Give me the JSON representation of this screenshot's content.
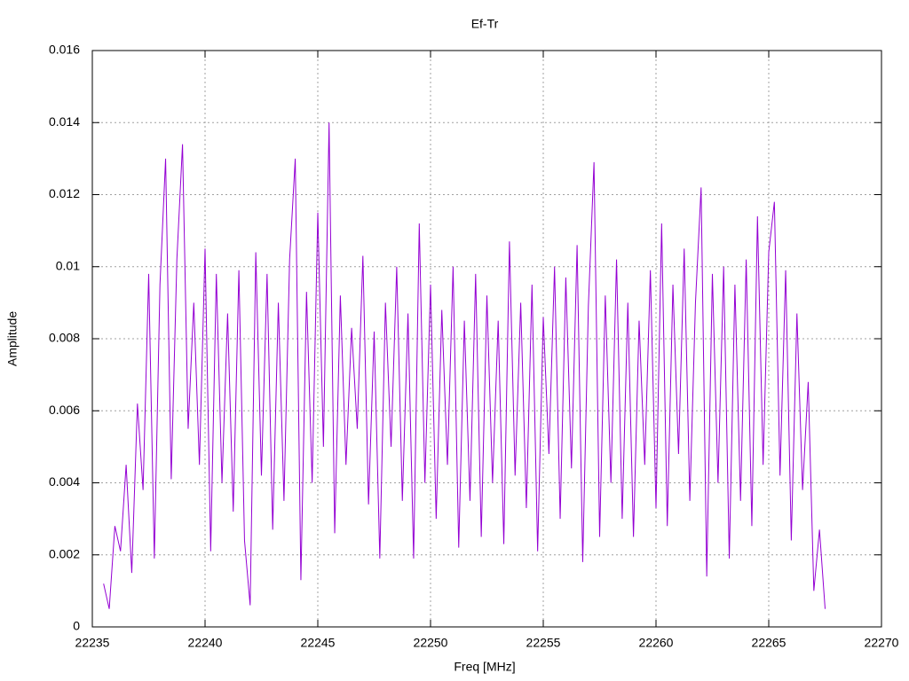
{
  "chart_data": {
    "type": "line",
    "title": "Ef-Tr",
    "x_label": "Freq [MHz]",
    "y_label": "Amplitude",
    "x": [
      22235.5,
      22235.75,
      22236,
      22236.25,
      22236.5,
      22236.75,
      22237,
      22237.25,
      22237.5,
      22237.75,
      22238,
      22238.25,
      22238.5,
      22238.75,
      22239,
      22239.25,
      22239.5,
      22239.75,
      22240,
      22240.25,
      22240.5,
      22240.75,
      22241,
      22241.25,
      22241.5,
      22241.75,
      22242,
      22242.25,
      22242.5,
      22242.75,
      22243,
      22243.25,
      22243.5,
      22243.75,
      22244,
      22244.25,
      22244.5,
      22244.75,
      22245,
      22245.25,
      22245.5,
      22245.75,
      22246,
      22246.25,
      22246.5,
      22246.75,
      22247,
      22247.25,
      22247.5,
      22247.75,
      22248,
      22248.25,
      22248.5,
      22248.75,
      22249,
      22249.25,
      22249.5,
      22249.75,
      22250,
      22250.25,
      22250.5,
      22250.75,
      22251,
      22251.25,
      22251.5,
      22251.75,
      22252,
      22252.25,
      22252.5,
      22252.75,
      22253,
      22253.25,
      22253.5,
      22253.75,
      22254,
      22254.25,
      22254.5,
      22254.75,
      22255,
      22255.25,
      22255.5,
      22255.75,
      22256,
      22256.25,
      22256.5,
      22256.75,
      22257,
      22257.25,
      22257.5,
      22257.75,
      22258,
      22258.25,
      22258.5,
      22258.75,
      22259,
      22259.25,
      22259.5,
      22259.75,
      22260,
      22260.25,
      22260.5,
      22260.75,
      22261,
      22261.25,
      22261.5,
      22261.75,
      22262,
      22262.25,
      22262.5,
      22262.75,
      22263,
      22263.25,
      22263.5,
      22263.75,
      22264,
      22264.25,
      22264.5,
      22264.75,
      22265,
      22265.25,
      22265.5,
      22265.75,
      22266,
      22266.25,
      22266.5,
      22266.75,
      22267,
      22267.25,
      22267.5
    ],
    "series": [
      {
        "color": "#9400d3",
        "values": [
          0.0012,
          0.0005,
          0.0028,
          0.0021,
          0.0045,
          0.0015,
          0.0062,
          0.0038,
          0.0098,
          0.0019,
          0.0095,
          0.013,
          0.0041,
          0.0102,
          0.0134,
          0.0055,
          0.009,
          0.0045,
          0.0105,
          0.0021,
          0.0098,
          0.004,
          0.0087,
          0.0032,
          0.0099,
          0.0024,
          0.0006,
          0.0104,
          0.0042,
          0.0098,
          0.0027,
          0.009,
          0.0035,
          0.0102,
          0.013,
          0.0013,
          0.0093,
          0.004,
          0.0115,
          0.005,
          0.014,
          0.0026,
          0.0092,
          0.0045,
          0.0083,
          0.0055,
          0.0103,
          0.0034,
          0.0082,
          0.0019,
          0.009,
          0.005,
          0.01,
          0.0035,
          0.0087,
          0.0019,
          0.0112,
          0.004,
          0.0095,
          0.003,
          0.0088,
          0.0045,
          0.01,
          0.0022,
          0.0085,
          0.0035,
          0.0098,
          0.0025,
          0.0092,
          0.004,
          0.0085,
          0.0023,
          0.0107,
          0.0042,
          0.009,
          0.0033,
          0.0095,
          0.0021,
          0.0086,
          0.0048,
          0.01,
          0.003,
          0.0097,
          0.0044,
          0.0106,
          0.0018,
          0.0089,
          0.0129,
          0.0025,
          0.0092,
          0.004,
          0.0102,
          0.003,
          0.009,
          0.0025,
          0.0085,
          0.0045,
          0.0099,
          0.0033,
          0.0112,
          0.0028,
          0.0095,
          0.0048,
          0.0105,
          0.0035,
          0.009,
          0.0122,
          0.0014,
          0.0098,
          0.004,
          0.01,
          0.0019,
          0.0095,
          0.0035,
          0.0102,
          0.0028,
          0.0114,
          0.0045,
          0.0104,
          0.0118,
          0.0042,
          0.0099,
          0.0024,
          0.0087,
          0.0038,
          0.0068,
          0.001,
          0.0027,
          0.0005
        ]
      }
    ],
    "xlim": [
      22235,
      22270
    ],
    "xticks": [
      22235,
      22240,
      22245,
      22250,
      22255,
      22260,
      22265,
      22270
    ],
    "ylim": [
      0,
      0.016
    ],
    "yticks": [
      0,
      0.002,
      0.004,
      0.006,
      0.008,
      0.01,
      0.012,
      0.014,
      0.016
    ],
    "grid": true
  }
}
